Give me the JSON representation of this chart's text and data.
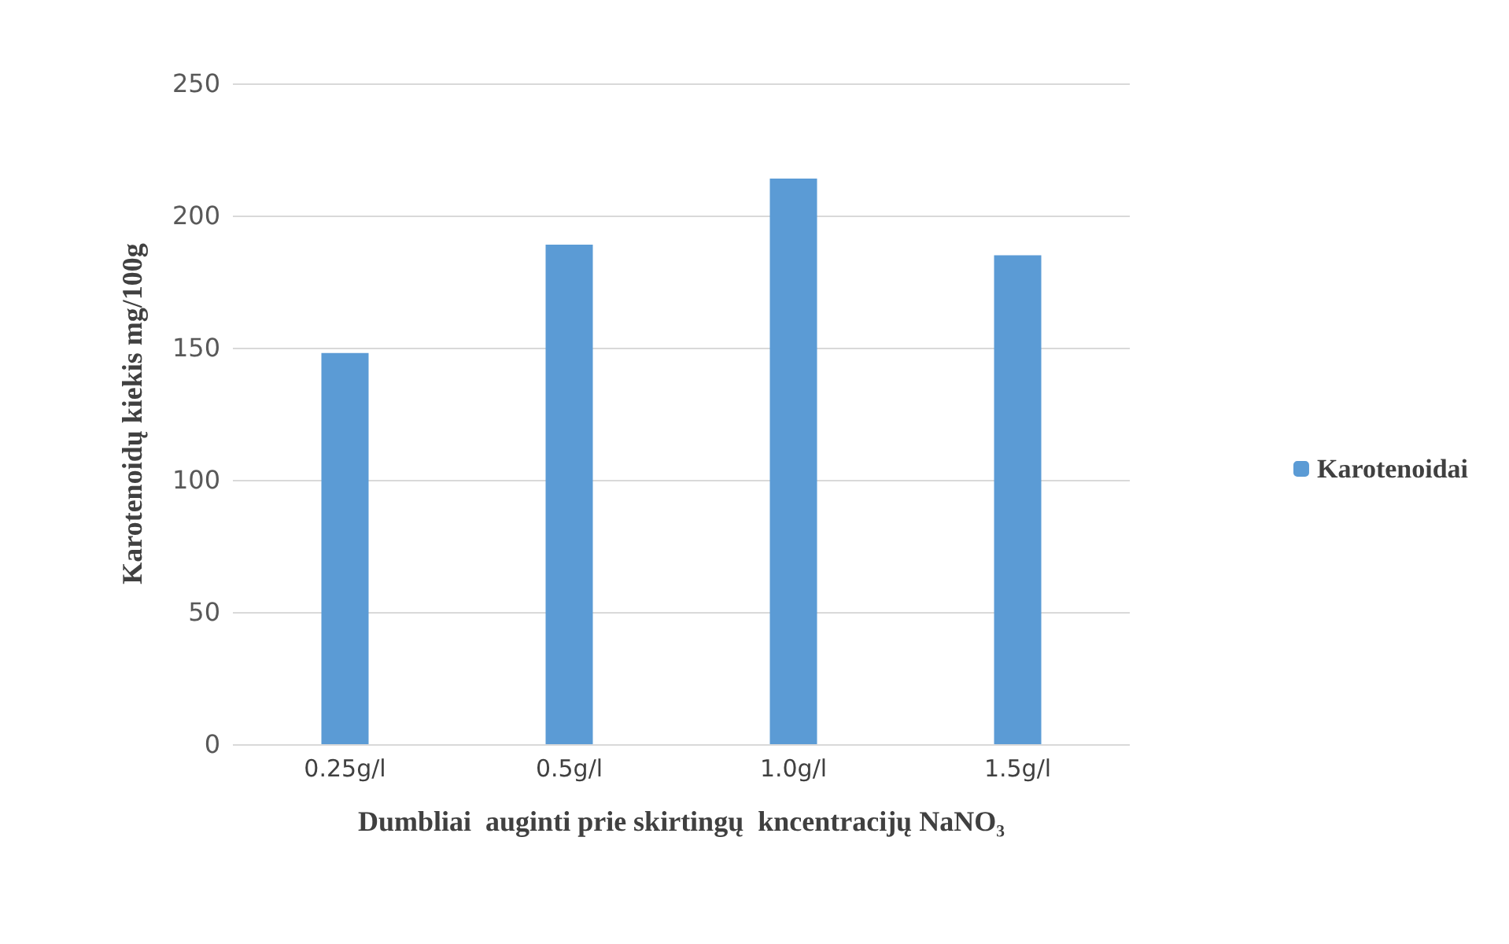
{
  "chart_data": {
    "type": "bar",
    "xlabel": "Dumbliai  auginti prie skirtingų  kncentracijų NaNO₃",
    "ylabel": "Karotenoidų kiekis mg/100g",
    "categories": [
      "0.25g/l",
      "0.5g/l",
      "1.0g/l",
      "1.5g/l"
    ],
    "series": [
      {
        "name": "Karotenoidai",
        "color": "#5b9bd5",
        "values": [
          148,
          189,
          214,
          185
        ]
      }
    ],
    "ylim": [
      0,
      250
    ],
    "yticks": [
      0,
      50,
      100,
      150,
      200,
      250
    ],
    "grid": "y",
    "legend": "right"
  }
}
